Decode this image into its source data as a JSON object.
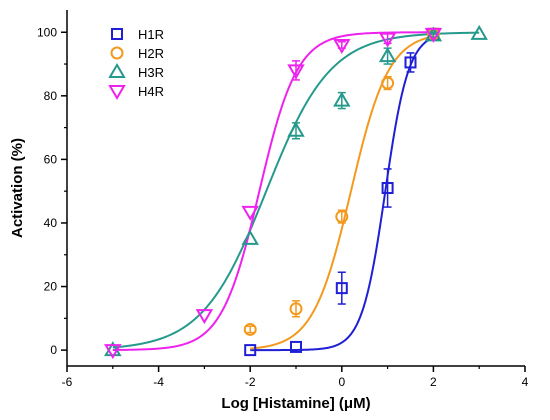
{
  "chart_data": {
    "type": "scatter",
    "xlabel": "Log [Histamine] (μM)",
    "ylabel": "Activation (%)",
    "xlim": [
      -6,
      4
    ],
    "ylim": [
      -5,
      107
    ],
    "xticks": [
      -6,
      -4,
      -2,
      0,
      2,
      4
    ],
    "yticks": [
      0,
      20,
      40,
      60,
      80,
      100
    ],
    "grid": false,
    "legend_position": "top-left",
    "series": [
      {
        "name": "H1R",
        "marker": "square",
        "color": "#1f1fd6",
        "points": [
          {
            "x": -2,
            "y": 0,
            "err": 0
          },
          {
            "x": -1,
            "y": 1,
            "err": 0
          },
          {
            "x": 0,
            "y": 19.5,
            "err": 5
          },
          {
            "x": 1,
            "y": 51,
            "err": 6
          },
          {
            "x": 1.5,
            "y": 90.5,
            "err": 3
          },
          {
            "x": 2,
            "y": 99.5,
            "err": 1
          }
        ],
        "fit": {
          "bottom": 0,
          "top": 100,
          "logEC50": 0.95,
          "hill": 1.7
        }
      },
      {
        "name": "H2R",
        "marker": "circle",
        "color": "#f39a1e",
        "points": [
          {
            "x": -2,
            "y": 6.5,
            "err": 1
          },
          {
            "x": -1,
            "y": 13,
            "err": 2.5
          },
          {
            "x": 0,
            "y": 42,
            "err": 2
          },
          {
            "x": 1,
            "y": 84,
            "err": 2
          },
          {
            "x": 2,
            "y": 99.5,
            "err": 1
          }
        ],
        "fit": {
          "bottom": 0,
          "top": 100,
          "logEC50": 0.2,
          "hill": 1.05
        }
      },
      {
        "name": "H3R",
        "marker": "triangle-up",
        "color": "#259a8c",
        "points": [
          {
            "x": -5,
            "y": 0,
            "err": 0
          },
          {
            "x": -2,
            "y": 35,
            "err": 0
          },
          {
            "x": -1,
            "y": 69,
            "err": 2.5
          },
          {
            "x": 0,
            "y": 78.5,
            "err": 2.5
          },
          {
            "x": 1,
            "y": 92.5,
            "err": 2.5
          },
          {
            "x": 2,
            "y": 99,
            "err": 1
          },
          {
            "x": 3,
            "y": 99.5,
            "err": 0
          }
        ],
        "fit": {
          "bottom": 0,
          "top": 100,
          "logEC50": -1.65,
          "hill": 0.62
        }
      },
      {
        "name": "H4R",
        "marker": "triangle-down",
        "color": "#ee22ee",
        "points": [
          {
            "x": -5,
            "y": 0,
            "err": 0
          },
          {
            "x": -3,
            "y": 11,
            "err": 0
          },
          {
            "x": -2,
            "y": 43.5,
            "err": 0
          },
          {
            "x": -1,
            "y": 88,
            "err": 3
          },
          {
            "x": 0,
            "y": 96,
            "err": 1
          },
          {
            "x": 1,
            "y": 98,
            "err": 1.5
          },
          {
            "x": 2,
            "y": 99.5,
            "err": 0
          }
        ],
        "fit": {
          "bottom": 0,
          "top": 100,
          "logEC50": -1.8,
          "hill": 1.05
        }
      }
    ]
  }
}
